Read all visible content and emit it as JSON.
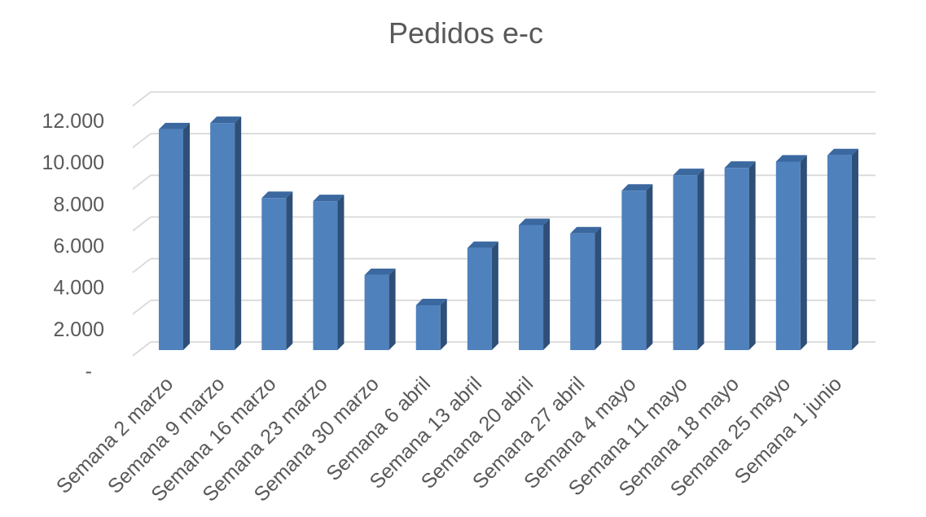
{
  "page": {
    "background": "#ffffff"
  },
  "chart_data": {
    "type": "bar",
    "style": "3d-clustered-column",
    "title": "Pedidos e-c",
    "xlabel": "",
    "ylabel": "",
    "legend": "none",
    "grid": true,
    "ylim": [
      0,
      12000
    ],
    "ytick_interval": 2000,
    "yticks": [
      {
        "value": 12000,
        "label": "12.000"
      },
      {
        "value": 10000,
        "label": "10.000"
      },
      {
        "value": 8000,
        "label": "8.000"
      },
      {
        "value": 6000,
        "label": "6.000"
      },
      {
        "value": 4000,
        "label": "4.000"
      },
      {
        "value": 2000,
        "label": "2.000"
      },
      {
        "value": 0,
        "label": "-"
      }
    ],
    "categories": [
      "Semana 2 marzo",
      "Semana 9 marzo",
      "Semana 16 marzo",
      "Semana 23 marzo",
      "Semana 30 marzo",
      "Semana 6 abril",
      "Semana 13 abril",
      "Semana 20 abril",
      "Semana 27 abril",
      "Semana 4 mayo",
      "Semana 11 mayo",
      "Semana 18 mayo",
      "Semana 25 mayo",
      "Semana 1 junio"
    ],
    "values": [
      10600,
      10900,
      7300,
      7150,
      3600,
      2150,
      4900,
      6000,
      5600,
      7650,
      8400,
      8750,
      9050,
      9350
    ],
    "colors": {
      "bar_front": "#4f81bd",
      "bar_side": "#2e4f77",
      "bar_top": "#3a689f",
      "gridline": "#d9d9d9",
      "text": "#595959",
      "background": "#ffffff"
    }
  }
}
